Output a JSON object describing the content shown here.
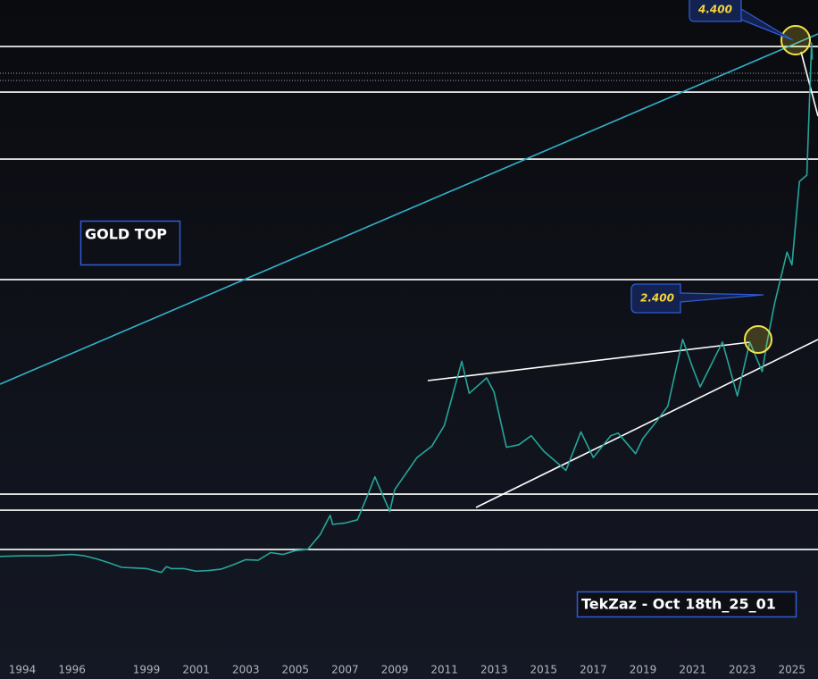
{
  "chart_data": {
    "type": "line",
    "title": "GOLD TOP",
    "annotations": [
      "4.400",
      "2.400",
      "TekZaz - Oct 18th_25_01"
    ],
    "xlim": [
      1993.1,
      2026.05
    ],
    "ylim": [
      -401,
      4714
    ],
    "xticks": [
      1994,
      1996,
      1999,
      2001,
      2003,
      2005,
      2007,
      2009,
      2011,
      2013,
      2015,
      2017,
      2019,
      2021,
      2023,
      2025
    ],
    "levels": [
      4352,
      3997,
      3475,
      2536,
      865,
      740,
      434
    ],
    "dotted_levels": [
      4143,
      4087
    ],
    "series": [
      {
        "color": "#26a69a",
        "x": [
          1993.1,
          1994,
          1995,
          1996,
          1996.5,
          1997,
          1997.5,
          1998,
          1998.5,
          1999,
          1999.6,
          1999.8,
          2000,
          2000.5,
          2001,
          2001.5,
          2002,
          2002.5,
          2003,
          2003.5,
          2004,
          2004.5,
          2005,
          2005.5,
          2006,
          2006.4,
          2006.5,
          2007,
          2007.5,
          2008,
          2008.2,
          2008.8,
          2009,
          2009.9,
          2010.5,
          2011,
          2011.7,
          2012,
          2012.7,
          2013,
          2013.5,
          2014,
          2014.5,
          2015,
          2015.9,
          2016.5,
          2017,
          2017.7,
          2018,
          2018.7,
          2019,
          2019.5,
          2020,
          2020.6,
          2021,
          2021.3,
          2022.2,
          2022.8,
          2023.3,
          2023.8,
          2024,
          2024.3,
          2024.8,
          2025,
          2025.3,
          2025.6,
          2025.79,
          2025.82
        ],
        "values": [
          380,
          385,
          385,
          395,
          385,
          360,
          330,
          295,
          290,
          285,
          255,
          300,
          285,
          285,
          265,
          270,
          280,
          315,
          355,
          350,
          410,
          395,
          425,
          435,
          550,
          700,
          630,
          640,
          665,
          900,
          1000,
          730,
          900,
          1150,
          1240,
          1400,
          1900,
          1650,
          1770,
          1660,
          1230,
          1250,
          1320,
          1200,
          1050,
          1350,
          1150,
          1320,
          1340,
          1180,
          1300,
          1420,
          1550,
          2070,
          1850,
          1700,
          2050,
          1630,
          2050,
          1820,
          2050,
          2350,
          2750,
          2650,
          3300,
          3350,
          4380,
          4250
        ]
      }
    ]
  }
}
